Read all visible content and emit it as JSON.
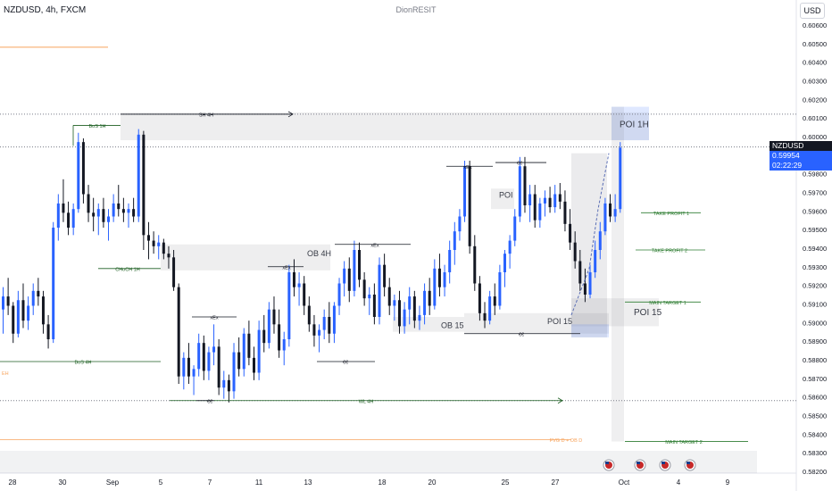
{
  "header": {
    "symbol_title": "NZDUSD, 4h, FXCM",
    "watermark": "DionRESIT",
    "currency": "USD"
  },
  "price_tag": {
    "symbol": "NZDUSD",
    "price": "0.59954",
    "countdown": "02:22:29"
  },
  "chart_data": {
    "type": "candlestick",
    "ylim": [
      0.5818,
      0.6069
    ],
    "y_ticks": [
      "0.60600",
      "0.60500",
      "0.60400",
      "0.60300",
      "0.60200",
      "0.60100",
      "0.60000",
      "0.59900",
      "0.59800",
      "0.59700",
      "0.59600",
      "0.59500",
      "0.59400",
      "0.59300",
      "0.59200",
      "0.59100",
      "0.59000",
      "0.58900",
      "0.58800",
      "0.58700",
      "0.58600",
      "0.58500",
      "0.58400",
      "0.58300",
      "0.58200"
    ],
    "x_ticks": [
      "28",
      "30",
      "Sep",
      "5",
      "7",
      "11",
      "13",
      "18",
      "20",
      "25",
      "27",
      "Oct",
      "4",
      "9"
    ],
    "current_price": 0.59954,
    "colors": {
      "up": "#2962ff",
      "down": "#131722"
    },
    "zones": [
      {
        "label": "POI 1H",
        "from": 0.5999,
        "to": 0.6014
      },
      {
        "label": "OB 4H",
        "from": 0.5929,
        "to": 0.5943
      },
      {
        "label": "POI",
        "from": 0.5962,
        "to": 0.5973
      },
      {
        "label": "OB 15",
        "from": 0.5896,
        "to": 0.5904
      },
      {
        "label": "POI 15",
        "from": 0.5895,
        "to": 0.5906
      },
      {
        "label": "POI 15",
        "from": 0.5899,
        "to": 0.5914
      }
    ],
    "levels": [
      {
        "label": "SH 4H",
        "price": 0.6013
      },
      {
        "label": "BoS 1H",
        "price": 0.6007
      },
      {
        "label": "CHoCH 1H",
        "price": 0.593
      },
      {
        "label": "BoS 4H",
        "price": 0.588
      },
      {
        "label": "WL 4H",
        "price": 0.5859
      },
      {
        "label": "xEx",
        "price": 0.5943
      },
      {
        "label": "xEx",
        "price": 0.5931
      },
      {
        "label": "xEx",
        "price": 0.5904
      },
      {
        "label": "xEx",
        "price": 0.5985
      },
      {
        "label": "€€",
        "price": 0.5987
      },
      {
        "label": "€€",
        "price": 0.5895
      },
      {
        "label": "€€",
        "price": 0.588
      },
      {
        "label": "€€",
        "price": 0.5859
      },
      {
        "label": "TAKE PROFIT 1",
        "price": 0.596
      },
      {
        "label": "TAKE PROFIT 2",
        "price": 0.594
      },
      {
        "label": "MAIN TARGET 1",
        "price": 0.5912
      },
      {
        "label": "MAIN TARGET 2",
        "price": 0.5837
      },
      {
        "label": "FVG D + OB D",
        "price": 0.5838
      },
      {
        "label": "EH",
        "price": 0.5874
      }
    ],
    "candles": [
      [
        0.5908,
        0.592,
        0.5895,
        0.5915
      ],
      [
        0.5915,
        0.5925,
        0.5905,
        0.591
      ],
      [
        0.591,
        0.5912,
        0.589,
        0.5895
      ],
      [
        0.5895,
        0.5918,
        0.5893,
        0.5913
      ],
      [
        0.5913,
        0.5922,
        0.5898,
        0.5902
      ],
      [
        0.5902,
        0.5915,
        0.5897,
        0.591
      ],
      [
        0.591,
        0.5922,
        0.5905,
        0.5918
      ],
      [
        0.5918,
        0.5925,
        0.591,
        0.5915
      ],
      [
        0.5915,
        0.5918,
        0.5895,
        0.59
      ],
      [
        0.59,
        0.5905,
        0.5887,
        0.5892
      ],
      [
        0.5892,
        0.5955,
        0.589,
        0.5952
      ],
      [
        0.5952,
        0.597,
        0.5945,
        0.5965
      ],
      [
        0.5965,
        0.5978,
        0.5955,
        0.596
      ],
      [
        0.596,
        0.5966,
        0.5948,
        0.5952
      ],
      [
        0.5952,
        0.5965,
        0.5948,
        0.5962
      ],
      [
        0.5962,
        0.6003,
        0.596,
        0.5998
      ],
      [
        0.5998,
        0.6,
        0.5965,
        0.597
      ],
      [
        0.597,
        0.5975,
        0.5955,
        0.596
      ],
      [
        0.596,
        0.5968,
        0.595,
        0.5958
      ],
      [
        0.5958,
        0.5965,
        0.5948,
        0.5962
      ],
      [
        0.5962,
        0.5968,
        0.5952,
        0.5955
      ],
      [
        0.5955,
        0.5962,
        0.5945,
        0.5958
      ],
      [
        0.5958,
        0.597,
        0.5955,
        0.5965
      ],
      [
        0.5965,
        0.5975,
        0.5958,
        0.5962
      ],
      [
        0.5962,
        0.5968,
        0.5955,
        0.596
      ],
      [
        0.596,
        0.5965,
        0.5952,
        0.5962
      ],
      [
        0.5962,
        0.5968,
        0.5955,
        0.5958
      ],
      [
        0.5958,
        0.6005,
        0.5955,
        0.6002
      ],
      [
        0.6002,
        0.6004,
        0.594,
        0.5948
      ],
      [
        0.5948,
        0.5955,
        0.5935,
        0.5945
      ],
      [
        0.5945,
        0.595,
        0.5938,
        0.5942
      ],
      [
        0.5942,
        0.5948,
        0.5935,
        0.5944
      ],
      [
        0.5944,
        0.5946,
        0.5935,
        0.5938
      ],
      [
        0.5938,
        0.5942,
        0.593,
        0.5936
      ],
      [
        0.5936,
        0.594,
        0.5918,
        0.592
      ],
      [
        0.592,
        0.5922,
        0.5868,
        0.5872
      ],
      [
        0.5872,
        0.5885,
        0.5865,
        0.5882
      ],
      [
        0.5882,
        0.589,
        0.5868,
        0.5872
      ],
      [
        0.5872,
        0.5878,
        0.5862,
        0.5876
      ],
      [
        0.5876,
        0.5895,
        0.5872,
        0.589
      ],
      [
        0.589,
        0.5894,
        0.587,
        0.5875
      ],
      [
        0.5875,
        0.5888,
        0.587,
        0.5885
      ],
      [
        0.5885,
        0.59,
        0.5878,
        0.5888
      ],
      [
        0.5888,
        0.5892,
        0.5862,
        0.5866
      ],
      [
        0.5866,
        0.5875,
        0.586,
        0.587
      ],
      [
        0.587,
        0.5873,
        0.5858,
        0.5864
      ],
      [
        0.5864,
        0.589,
        0.586,
        0.5885
      ],
      [
        0.5885,
        0.5893,
        0.5872,
        0.5876
      ],
      [
        0.5876,
        0.5898,
        0.5872,
        0.5895
      ],
      [
        0.5895,
        0.5902,
        0.5878,
        0.5882
      ],
      [
        0.5882,
        0.5888,
        0.587,
        0.5874
      ],
      [
        0.5874,
        0.5902,
        0.587,
        0.5897
      ],
      [
        0.5897,
        0.5905,
        0.5885,
        0.589
      ],
      [
        0.589,
        0.5912,
        0.5887,
        0.5908
      ],
      [
        0.5908,
        0.5915,
        0.5895,
        0.59
      ],
      [
        0.59,
        0.5908,
        0.5882,
        0.5886
      ],
      [
        0.5886,
        0.5896,
        0.5878,
        0.5892
      ],
      [
        0.5892,
        0.5932,
        0.5888,
        0.5928
      ],
      [
        0.5928,
        0.5935,
        0.5915,
        0.592
      ],
      [
        0.592,
        0.5928,
        0.591,
        0.5922
      ],
      [
        0.5922,
        0.5926,
        0.5905,
        0.591
      ],
      [
        0.591,
        0.5915,
        0.5896,
        0.59
      ],
      [
        0.59,
        0.5905,
        0.5888,
        0.5894
      ],
      [
        0.5894,
        0.59,
        0.5885,
        0.5897
      ],
      [
        0.5897,
        0.5908,
        0.5892,
        0.5904
      ],
      [
        0.5904,
        0.5912,
        0.589,
        0.5895
      ],
      [
        0.5895,
        0.5912,
        0.589,
        0.591
      ],
      [
        0.591,
        0.5925,
        0.5905,
        0.5922
      ],
      [
        0.5922,
        0.5934,
        0.5915,
        0.593
      ],
      [
        0.593,
        0.5936,
        0.5912,
        0.5918
      ],
      [
        0.5918,
        0.5945,
        0.5915,
        0.594
      ],
      [
        0.594,
        0.5944,
        0.592,
        0.5924
      ],
      [
        0.5924,
        0.5928,
        0.591,
        0.5914
      ],
      [
        0.5914,
        0.592,
        0.5905,
        0.5916
      ],
      [
        0.5916,
        0.5922,
        0.59,
        0.5904
      ],
      [
        0.5904,
        0.5936,
        0.59,
        0.5932
      ],
      [
        0.5932,
        0.5938,
        0.5915,
        0.592
      ],
      [
        0.592,
        0.5925,
        0.5905,
        0.591
      ],
      [
        0.591,
        0.5916,
        0.5902,
        0.5913
      ],
      [
        0.5913,
        0.5918,
        0.5895,
        0.5899
      ],
      [
        0.5899,
        0.5912,
        0.5895,
        0.5908
      ],
      [
        0.5908,
        0.592,
        0.59,
        0.5915
      ],
      [
        0.5915,
        0.5918,
        0.5898,
        0.5902
      ],
      [
        0.5902,
        0.591,
        0.5897,
        0.5905
      ],
      [
        0.5905,
        0.5922,
        0.59,
        0.5918
      ],
      [
        0.5918,
        0.5925,
        0.5905,
        0.591
      ],
      [
        0.591,
        0.5935,
        0.5908,
        0.593
      ],
      [
        0.593,
        0.5938,
        0.5915,
        0.592
      ],
      [
        0.592,
        0.5932,
        0.5915,
        0.5928
      ],
      [
        0.5928,
        0.5945,
        0.5922,
        0.594
      ],
      [
        0.594,
        0.5955,
        0.5932,
        0.595
      ],
      [
        0.595,
        0.5962,
        0.5945,
        0.5958
      ],
      [
        0.5958,
        0.5988,
        0.5955,
        0.5985
      ],
      [
        0.5985,
        0.5988,
        0.5938,
        0.5942
      ],
      [
        0.5942,
        0.5948,
        0.5918,
        0.5922
      ],
      [
        0.5922,
        0.5926,
        0.5902,
        0.5906
      ],
      [
        0.5906,
        0.5912,
        0.5898,
        0.5902
      ],
      [
        0.5902,
        0.5918,
        0.59,
        0.5915
      ],
      [
        0.5915,
        0.5922,
        0.5905,
        0.591
      ],
      [
        0.591,
        0.5932,
        0.5908,
        0.5928
      ],
      [
        0.5928,
        0.594,
        0.592,
        0.5938
      ],
      [
        0.5938,
        0.5948,
        0.593,
        0.5945
      ],
      [
        0.5945,
        0.5962,
        0.5942,
        0.5958
      ],
      [
        0.5958,
        0.599,
        0.5955,
        0.5985
      ],
      [
        0.5985,
        0.599,
        0.596,
        0.5964
      ],
      [
        0.5964,
        0.5975,
        0.5955,
        0.597
      ],
      [
        0.597,
        0.5975,
        0.5952,
        0.5956
      ],
      [
        0.5956,
        0.5968,
        0.5952,
        0.5965
      ],
      [
        0.5965,
        0.5972,
        0.5958,
        0.5968
      ],
      [
        0.5968,
        0.5974,
        0.596,
        0.5963
      ],
      [
        0.5963,
        0.5975,
        0.596,
        0.597
      ],
      [
        0.597,
        0.5976,
        0.5962,
        0.5966
      ],
      [
        0.5966,
        0.5972,
        0.595,
        0.5954
      ],
      [
        0.5954,
        0.5962,
        0.594,
        0.5944
      ],
      [
        0.5944,
        0.595,
        0.593,
        0.5934
      ],
      [
        0.5934,
        0.594,
        0.5918,
        0.5922
      ],
      [
        0.5922,
        0.593,
        0.5912,
        0.5916
      ],
      [
        0.5916,
        0.5932,
        0.5914,
        0.5928
      ],
      [
        0.5928,
        0.5945,
        0.5925,
        0.594
      ],
      [
        0.594,
        0.5955,
        0.5935,
        0.595
      ],
      [
        0.595,
        0.5968,
        0.5948,
        0.5965
      ],
      [
        0.5965,
        0.597,
        0.5955,
        0.5958
      ],
      [
        0.5958,
        0.597,
        0.5955,
        0.5962
      ],
      [
        0.5962,
        0.5998,
        0.596,
        0.5995
      ]
    ]
  }
}
